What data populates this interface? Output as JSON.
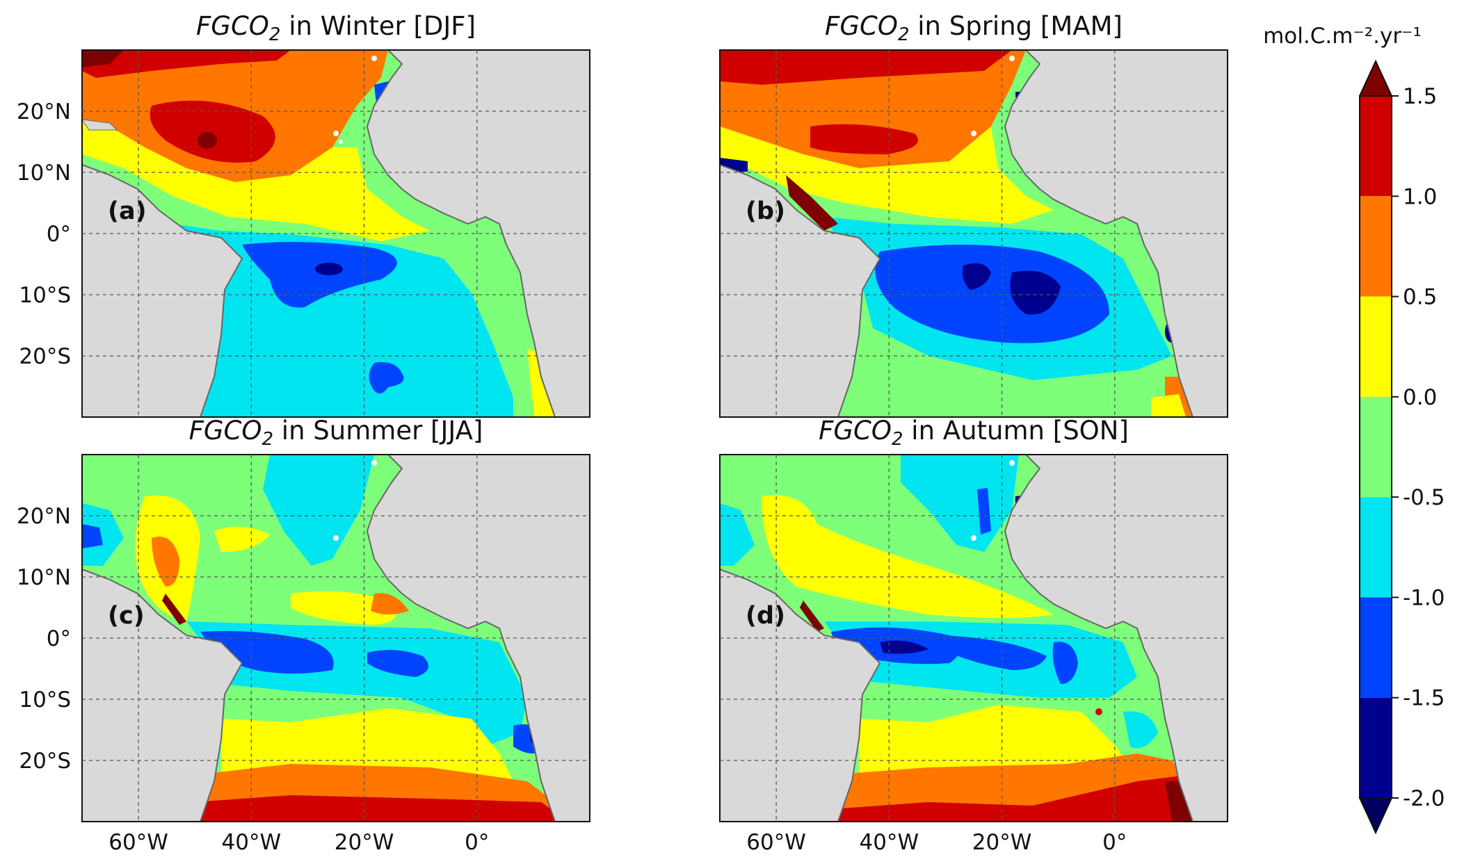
{
  "colorbar": {
    "unit_label": "mol.C.m⁻².yr⁻¹",
    "ticks": [
      "1.5",
      "1.0",
      "0.5",
      "0.0",
      "-0.5",
      "-1.0",
      "-1.5",
      "-2.0"
    ],
    "tick_values": [
      1.5,
      1.0,
      0.5,
      0.0,
      -0.5,
      -1.0,
      -1.5,
      -2.0
    ],
    "bands": [
      {
        "range": [
          1.5,
          2.0
        ],
        "color": "#7f0000"
      },
      {
        "range": [
          1.0,
          1.5
        ],
        "color": "#d10000"
      },
      {
        "range": [
          0.5,
          1.0
        ],
        "color": "#ff7700"
      },
      {
        "range": [
          0.0,
          0.5
        ],
        "color": "#ffff00"
      },
      {
        "range": [
          -0.5,
          0.0
        ],
        "color": "#7dff7a"
      },
      {
        "range": [
          -1.0,
          -0.5
        ],
        "color": "#00e5f0"
      },
      {
        "range": [
          -1.5,
          -1.0
        ],
        "color": "#0044ff"
      },
      {
        "range": [
          -2.0,
          -1.5
        ],
        "color": "#00008f"
      },
      {
        "range": [
          -2.5,
          -2.0
        ],
        "color": "#000060"
      }
    ]
  },
  "axes": {
    "lon_ticks": [
      "60°W",
      "40°W",
      "20°W",
      "0°"
    ],
    "lon_tick_values": [
      -60,
      -40,
      -20,
      0
    ],
    "lat_ticks": [
      "20°N",
      "10°N",
      "0°",
      "10°S",
      "20°S"
    ],
    "lat_tick_values": [
      20,
      10,
      0,
      -10,
      -20
    ],
    "lon_range": [
      -70,
      20
    ],
    "lat_range": [
      -30,
      30
    ],
    "land_color": "#d9d9d9"
  },
  "panels": [
    {
      "id": "a",
      "label": "(a)",
      "title_var": "FGCO",
      "title_sub": "2",
      "title_rest": " in Winter [DJF]"
    },
    {
      "id": "b",
      "label": "(b)",
      "title_var": "FGCO",
      "title_sub": "2",
      "title_rest": " in Spring [MAM]"
    },
    {
      "id": "c",
      "label": "(c)",
      "title_var": "FGCO",
      "title_sub": "2",
      "title_rest": " in Summer [JJA]"
    },
    {
      "id": "d",
      "label": "(d)",
      "title_var": "FGCO",
      "title_sub": "2",
      "title_rest": " in Autumn [SON]"
    }
  ]
}
